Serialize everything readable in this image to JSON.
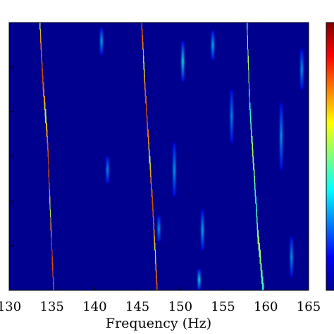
{
  "chart_data": {
    "type": "heatmap",
    "title": "",
    "xlabel": "Frequency (Hz)",
    "ylabel": "",
    "xlim": [
      130,
      165
    ],
    "xticks": [
      130,
      135,
      140,
      145,
      150,
      155,
      160,
      165
    ],
    "x_tick_labels": [
      "130",
      "135",
      "140",
      "145",
      "150",
      "155",
      "160",
      "165"
    ],
    "colormap": "jet",
    "colorbar": true,
    "background_color": "#00008f",
    "ridges": [
      {
        "freq_top": 133.6,
        "freq_bottom": 135.2,
        "peak_intensity": 0.95,
        "profile": [
          [
            0.0,
            133.6
          ],
          [
            0.2,
            133.9
          ],
          [
            0.45,
            134.5
          ],
          [
            0.7,
            134.8
          ],
          [
            1.0,
            135.2
          ]
        ]
      },
      {
        "freq_top": 145.5,
        "freq_bottom": 147.3,
        "peak_intensity": 0.95,
        "profile": [
          [
            0.0,
            145.5
          ],
          [
            0.25,
            145.9
          ],
          [
            0.5,
            146.4
          ],
          [
            0.75,
            146.9
          ],
          [
            1.0,
            147.3
          ]
        ]
      },
      {
        "freq_top": 157.8,
        "freq_bottom": 159.7,
        "peak_intensity": 0.6,
        "profile": [
          [
            0.0,
            157.8
          ],
          [
            0.3,
            158.1
          ],
          [
            0.55,
            158.6
          ],
          [
            0.8,
            159.1
          ],
          [
            1.0,
            159.7
          ]
        ]
      }
    ],
    "faint_streaks": [
      {
        "freq": 140.8,
        "t0": 0.02,
        "t1": 0.12,
        "intensity": 0.32
      },
      {
        "freq": 150.3,
        "t0": 0.07,
        "t1": 0.22,
        "intensity": 0.4
      },
      {
        "freq": 153.8,
        "t0": 0.03,
        "t1": 0.14,
        "intensity": 0.33
      },
      {
        "freq": 156.0,
        "t0": 0.25,
        "t1": 0.45,
        "intensity": 0.28
      },
      {
        "freq": 161.8,
        "t0": 0.3,
        "t1": 0.55,
        "intensity": 0.3
      },
      {
        "freq": 149.3,
        "t0": 0.45,
        "t1": 0.65,
        "intensity": 0.3
      },
      {
        "freq": 152.6,
        "t0": 0.7,
        "t1": 0.85,
        "intensity": 0.32
      },
      {
        "freq": 152.2,
        "t0": 0.92,
        "t1": 1.0,
        "intensity": 0.38
      },
      {
        "freq": 141.5,
        "t0": 0.5,
        "t1": 0.6,
        "intensity": 0.28
      },
      {
        "freq": 163.0,
        "t0": 0.8,
        "t1": 0.95,
        "intensity": 0.3
      },
      {
        "freq": 147.5,
        "t0": 0.72,
        "t1": 0.82,
        "intensity": 0.3
      },
      {
        "freq": 164.2,
        "t0": 0.1,
        "t1": 0.25,
        "intensity": 0.3
      }
    ]
  }
}
